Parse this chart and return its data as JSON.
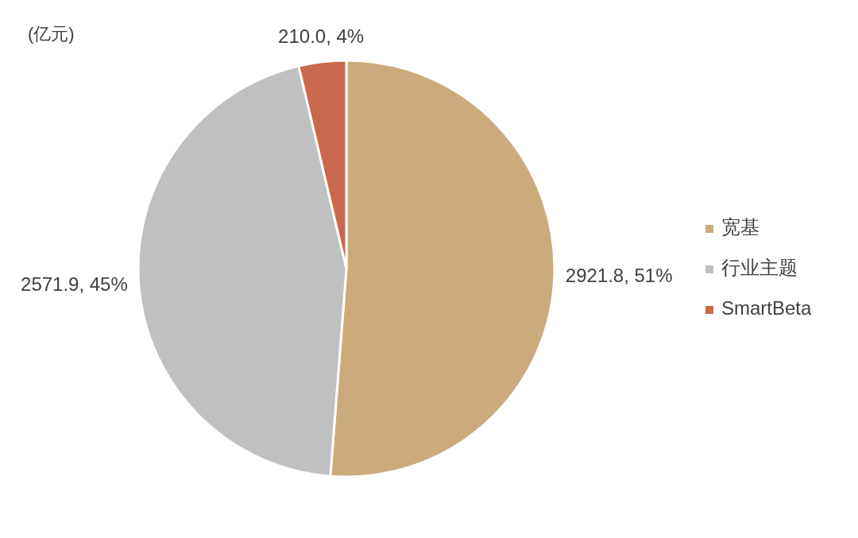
{
  "chart_data": {
    "type": "pie",
    "annotations": [
      "(亿元)"
    ],
    "categories": [
      "宽基",
      "行业主题",
      "SmartBeta"
    ],
    "values": [
      2921.8,
      2571.9,
      210.0
    ],
    "colors": [
      "#cbaa7b",
      "#bfc0c2",
      "#c8694d"
    ],
    "value_labels": [
      "2921.8, 51%",
      "2571.9, 45%",
      "210.0, 4%"
    ],
    "legend": "right"
  }
}
